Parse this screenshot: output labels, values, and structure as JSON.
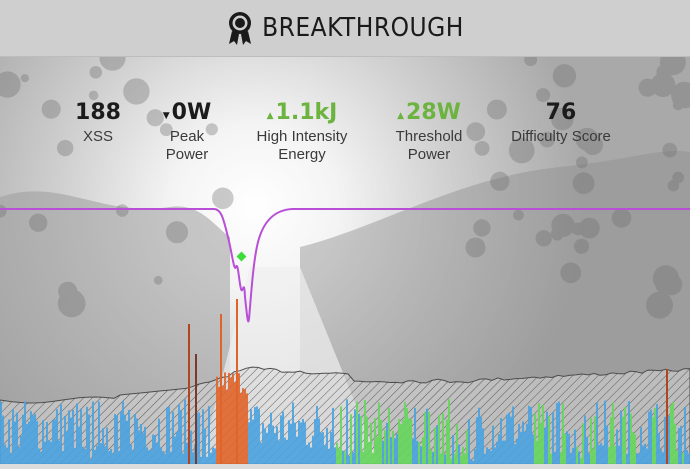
{
  "header": {
    "title": "BREAKTHROUGH",
    "icon": "award-badge-icon"
  },
  "stats": [
    {
      "value": "188",
      "label": "XSS",
      "trend": "none"
    },
    {
      "value": "0W",
      "label": "Peak\nPower",
      "trend": "down"
    },
    {
      "value": "1.1kJ",
      "label": "High Intensity\nEnergy",
      "trend": "up"
    },
    {
      "value": "28W",
      "label": "Threshold\nPower",
      "trend": "up"
    },
    {
      "value": "76",
      "label": "Difficulty Score",
      "trend": "none"
    }
  ],
  "colors": {
    "header_bg": "#cfcfcf",
    "trend_up": "#6db33f",
    "mpa_line": "#b84fd6",
    "marker": "#3ddc3d",
    "bar_blue": "#4aa3e0",
    "bar_green": "#66d65c",
    "bar_orange": "#e0642a"
  }
}
